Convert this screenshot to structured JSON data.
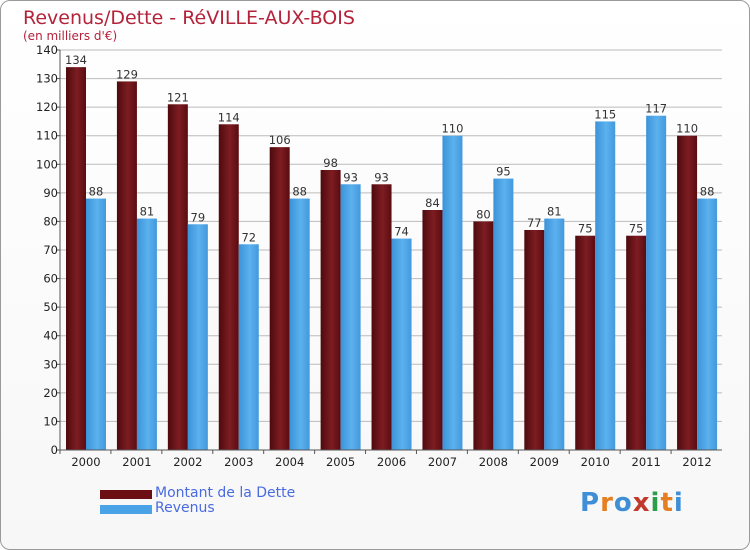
{
  "header": {
    "title": "Revenus/Dette - RéVILLE-AUX-BOIS",
    "subtitle": "(en milliers d'€)"
  },
  "colors": {
    "dette": "#6b0f14",
    "revenus": "#4aa3e6",
    "title": "#b4233a",
    "legend_text": "#4a6be0"
  },
  "legend": [
    {
      "label": "Montant de la Dette",
      "color": "#6b0f14"
    },
    {
      "label": "Revenus",
      "color": "#4aa3e6"
    }
  ],
  "brand": {
    "letters": [
      "P",
      "r",
      "o",
      "x",
      "i",
      "t",
      "i"
    ],
    "colors": [
      "#3f8fd6",
      "#e67e22",
      "#3f8fd6",
      "#c0392b",
      "#2e9d4a",
      "#e67e22",
      "#3f8fd6"
    ]
  },
  "chart_data": {
    "type": "bar",
    "title": "Revenus/Dette - RéVILLE-AUX-BOIS",
    "subtitle": "(en milliers d'€)",
    "categories": [
      "2000",
      "2001",
      "2002",
      "2003",
      "2004",
      "2005",
      "2006",
      "2007",
      "2008",
      "2009",
      "2010",
      "2011",
      "2012"
    ],
    "series": [
      {
        "name": "Montant de la Dette",
        "values": [
          134,
          129,
          121,
          114,
          106,
          98,
          93,
          84,
          80,
          77,
          75,
          75,
          110
        ]
      },
      {
        "name": "Revenus",
        "values": [
          88,
          81,
          79,
          72,
          88,
          93,
          74,
          110,
          95,
          81,
          115,
          117,
          88
        ]
      }
    ],
    "ylim": [
      0,
      140
    ],
    "yticks": [
      0,
      10,
      20,
      30,
      40,
      50,
      60,
      70,
      80,
      90,
      100,
      110,
      120,
      130,
      140
    ],
    "grid": true,
    "legend_position": "bottom-left"
  }
}
